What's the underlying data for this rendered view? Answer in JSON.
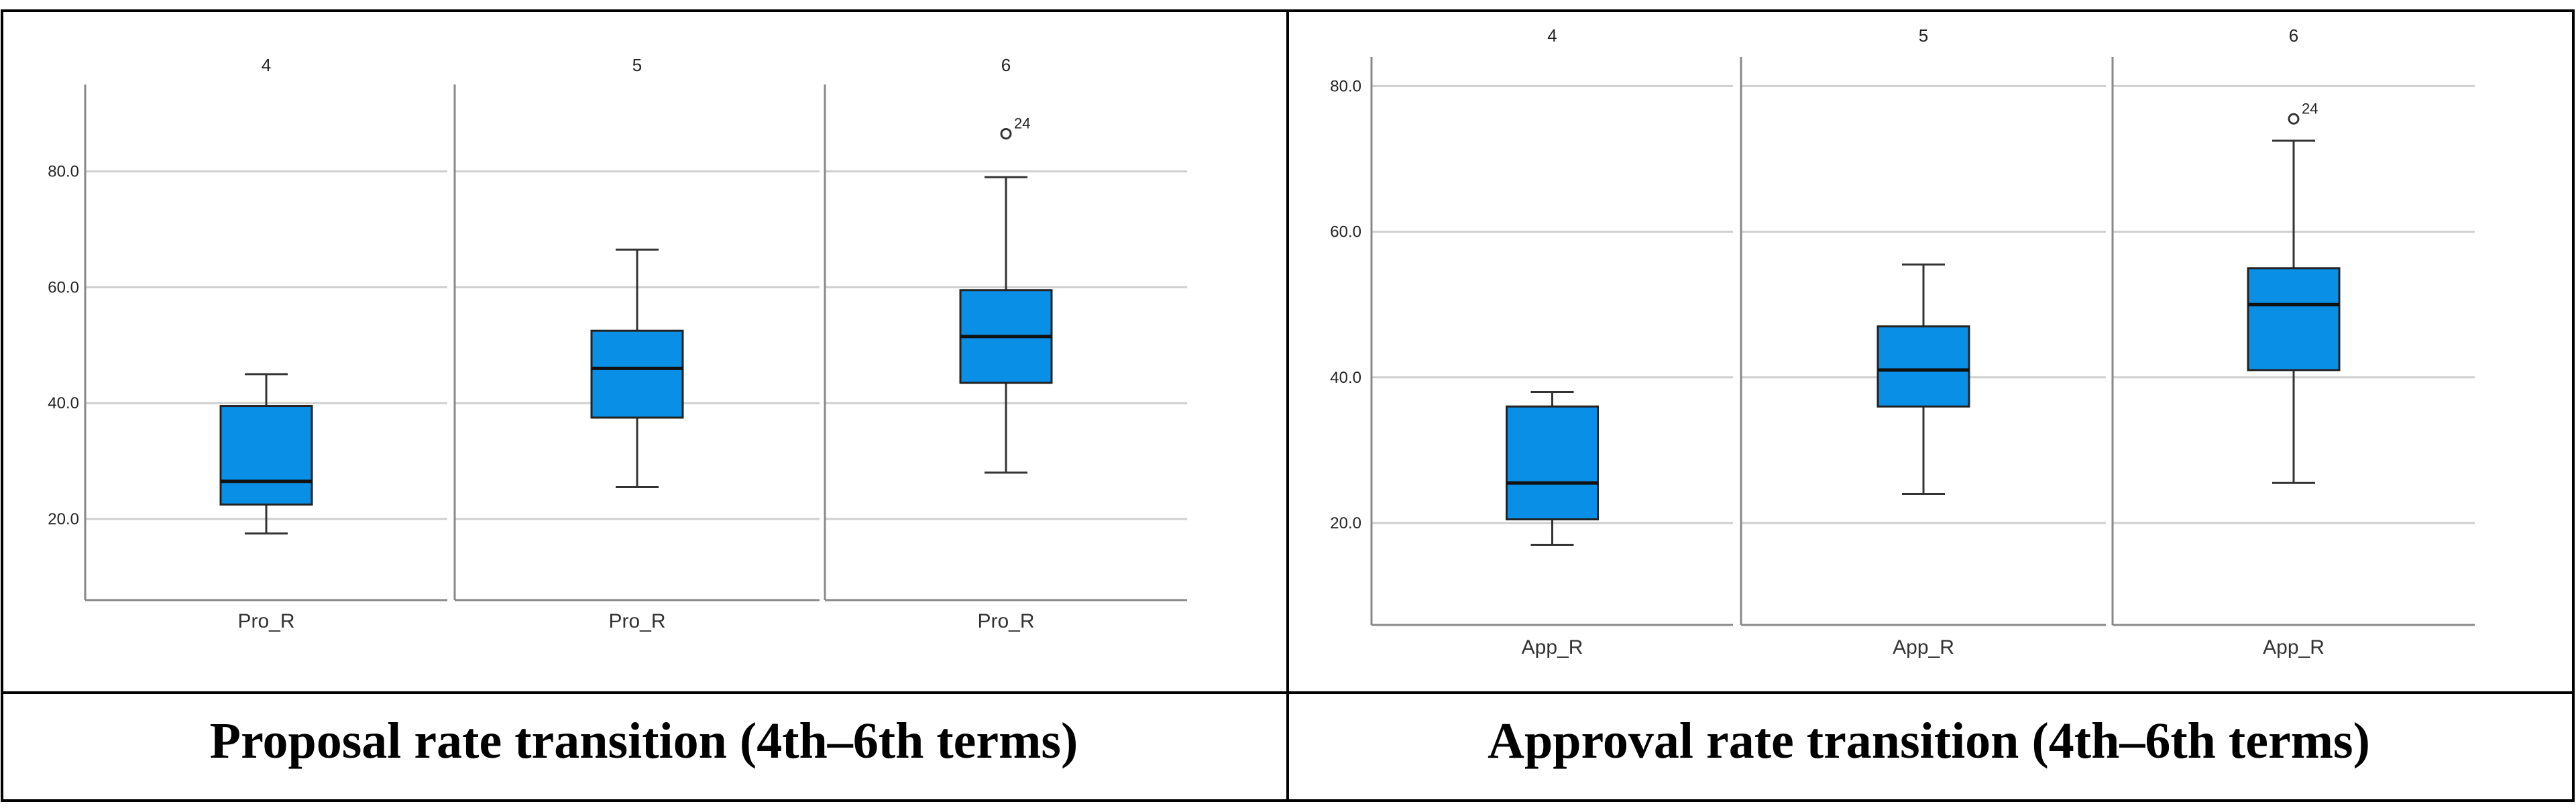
{
  "captions": {
    "left": "Proposal rate transition (4th–6th terms)",
    "right": "Approval rate transition (4th–6th terms)"
  },
  "colors": {
    "box_fill": "#0a8fe6",
    "box_stroke": "#222222",
    "median": "#111111",
    "whisker": "#333333",
    "grid": "#cfcfcf",
    "frame": "#000000"
  },
  "chart_data": [
    {
      "type": "boxplot",
      "title": "Proposal rate transition (4th–6th terms)",
      "panels": [
        "4",
        "5",
        "6"
      ],
      "yticks": [
        20,
        40,
        60,
        80
      ],
      "ytick_labels": [
        "20.0",
        "40.0",
        "60.0",
        "80.0"
      ],
      "ylim": [
        6,
        95
      ],
      "boxes": [
        {
          "panel": "4",
          "label": "Pro_R",
          "whisker_low": 17.5,
          "q1": 22.5,
          "median": 26.5,
          "q3": 39.5,
          "whisker_high": 45
        },
        {
          "panel": "5",
          "label": "Pro_R",
          "whisker_low": 25.5,
          "q1": 37.5,
          "median": 46,
          "q3": 52.5,
          "whisker_high": 66.5
        },
        {
          "panel": "6",
          "label": "Pro_R",
          "whisker_low": 28,
          "q1": 43.5,
          "median": 51.5,
          "q3": 59.5,
          "whisker_high": 79
        }
      ],
      "outliers": [
        {
          "panel": "6",
          "value": 86.5,
          "label": "24"
        }
      ]
    },
    {
      "type": "boxplot",
      "title": "Approval rate transition (4th–6th terms)",
      "panels": [
        "4",
        "5",
        "6"
      ],
      "yticks": [
        20,
        40,
        60,
        80
      ],
      "ytick_labels": [
        "20.0",
        "40.0",
        "60.0",
        "80.0"
      ],
      "ylim": [
        6,
        84
      ],
      "boxes": [
        {
          "panel": "4",
          "label": "App_R",
          "whisker_low": 17,
          "q1": 20.5,
          "median": 25.5,
          "q3": 36,
          "whisker_high": 38
        },
        {
          "panel": "5",
          "label": "App_R",
          "whisker_low": 24,
          "q1": 36,
          "median": 41,
          "q3": 47,
          "whisker_high": 55.5
        },
        {
          "panel": "6",
          "label": "App_R",
          "whisker_low": 25.5,
          "q1": 41,
          "median": 50,
          "q3": 55,
          "whisker_high": 72.5
        }
      ],
      "outliers": [
        {
          "panel": "6",
          "value": 75.5,
          "label": "24"
        }
      ]
    }
  ]
}
